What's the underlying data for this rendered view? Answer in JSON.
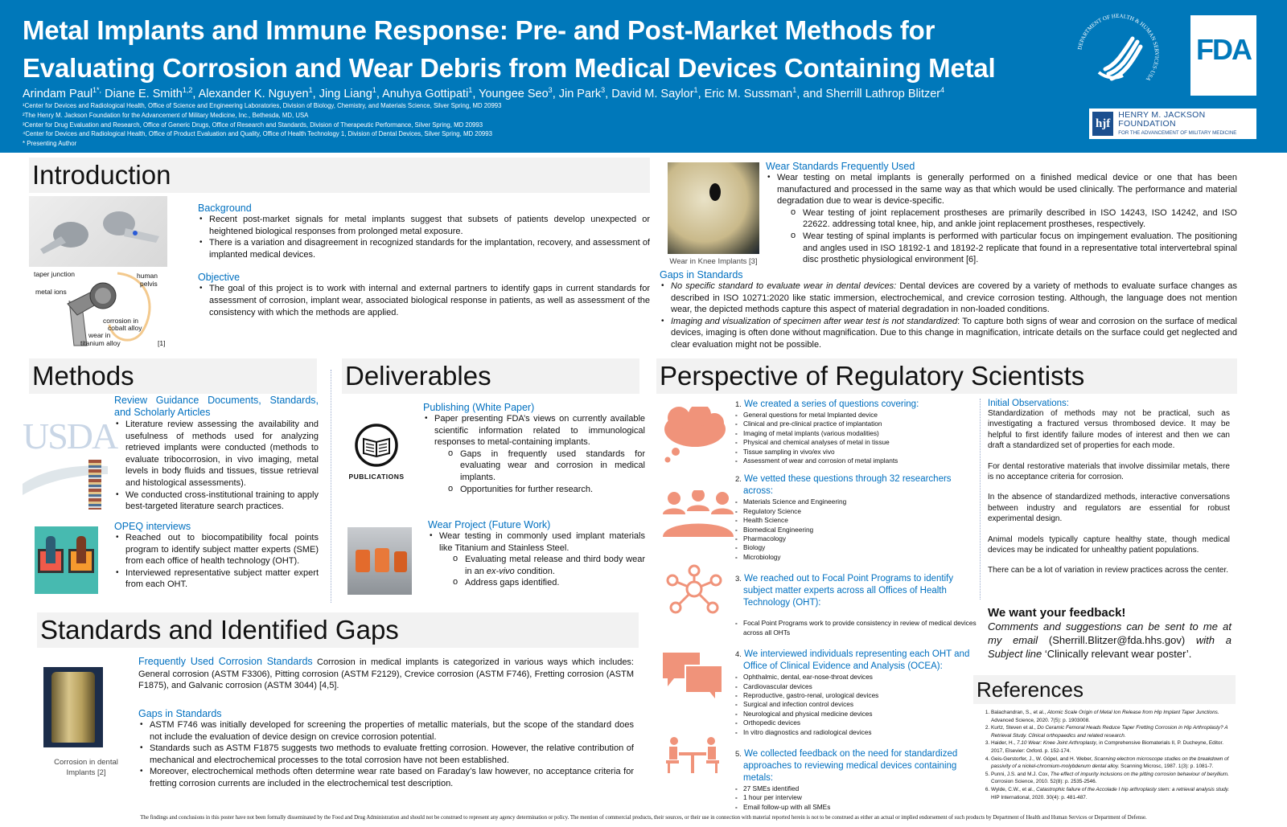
{
  "header": {
    "title_line1": "Metal Implants and Immune Response: Pre- and Post-Market Methods for",
    "title_line2": "Evaluating Corrosion and Wear Debris from Medical Devices Containing Metal",
    "authors": [
      {
        "name": "Arindam Paul",
        "sup": "1*,"
      },
      {
        "name": " Diane E. Smith",
        "sup": "1,2"
      },
      {
        "name": ", Alexander K. Nguyen",
        "sup": "1"
      },
      {
        "name": ", Jing Liang",
        "sup": "1"
      },
      {
        "name": ", Anuhya Gottipati",
        "sup": "1"
      },
      {
        "name": ", Youngee Seo",
        "sup": "3"
      },
      {
        "name": ", Jin Park",
        "sup": "3"
      },
      {
        "name": ", David M. Saylor",
        "sup": "1"
      },
      {
        "name": ", Eric M. Sussman",
        "sup": "1"
      },
      {
        "name": ", and Sherrill Lathrop Blitzer",
        "sup": "4"
      }
    ],
    "affiliations": [
      "¹Center for Devices and Radiological Health, Office of Science and Engineering Laboratories, Division of Biology, Chemistry, and Materials Science, Silver Spring, MD 20993",
      "²The Henry M. Jackson Foundation for the Advancement of Military Medicine, Inc., Bethesda, MD, USA",
      "³Center for Drug Evaluation and Research, Office of Generic Drugs, Office of Research and Standards, Division of Therapeutic Performance, Silver Spring, MD 20993",
      "⁴Center for Devices and Radiological Health, Office of Product Evaluation and Quality, Office of Health Technology 1, Division of Dental Devices, Silver Spring, MD 20993",
      "* Presenting Author"
    ],
    "logos": {
      "hhs_text": "DEPARTMENT OF HEALTH & HUMAN SERVICES·USA",
      "fda": "FDA",
      "hjf_badge": "hjf",
      "hjf_line1": "HENRY M. JACKSON FOUNDATION",
      "hjf_line2": "FOR THE ADVANCEMENT OF MILITARY MEDICINE"
    }
  },
  "colors": {
    "header_bg": "#0078ba",
    "subheading": "#0070c0",
    "section_bg": "#f2f2f2",
    "icon_salmon": "#f0937a"
  },
  "introduction": {
    "heading": "Introduction",
    "diagram_labels": {
      "taper": "taper junction",
      "pelvis1": "human",
      "pelvis2": "pelvis",
      "ions": "metal ions",
      "corr1": "corrosion in",
      "corr2": "cobalt alloy",
      "wear1": "wear in",
      "wear2": "titanium alloy",
      "ref": "[1]"
    },
    "background_title": "Background",
    "background": [
      "Recent post-market signals for metal implants suggest that subsets of patients develop unexpected or heightened biological responses from prolonged metal exposure.",
      "There is a variation and disagreement in recognized standards for the implantation, recovery, and assessment of implanted medical devices."
    ],
    "objective_title": "Objective",
    "objective": [
      "The goal of this project is to work with internal and external partners to identify gaps in current standards for assessment of corrosion, implant wear, associated biological response in patients, as well as assessment of the consistency with which the methods are applied."
    ]
  },
  "wear": {
    "image_caption": "Wear in Knee Implants [3]",
    "title": "Wear Standards Frequently Used",
    "bullet": "Wear testing on metal implants is generally performed on a finished medical device or one that has been manufactured and processed in the same way as that which would be used clinically. The performance and material degradation due to wear is device-specific.",
    "sub_bullets": [
      "Wear testing of joint replacement prostheses are primarily described in ISO 14243, ISO 14242, and ISO 22622. addressing  total knee, hip, and ankle joint replacement prostheses, respectively.",
      "Wear testing of spinal implants is performed with particular focus on impingement evaluation. The positioning and angles used in ISO 18192-1 and 18192-2 replicate that found in a representative total intervertebral spinal disc prosthetic physiological environment [6]."
    ],
    "gaps_title": "Gaps in Standards",
    "gaps": [
      {
        "lead": "No specific standard to evaluate wear in dental devices:",
        "text": " Dental devices are covered by a variety of methods to evaluate surface changes as described in ISO 10271:2020 like static immersion, electrochemical, and crevice corrosion testing. Although, the language does not mention wear, the depicted methods capture this aspect of material degradation in non-loaded conditions."
      },
      {
        "lead": "Imaging and visualization of specimen after wear test is not standardized",
        "text": ": To capture both signs of wear and corrosion on the surface of medical devices, imaging is often done without magnification. Due to this change in magnification, intricate details on the surface could get neglected and clear evaluation might not be possible."
      }
    ]
  },
  "methods": {
    "heading": "Methods",
    "usda_label": "USDA",
    "review_title": "Review Guidance Documents, Standards, and Scholarly Articles",
    "review": [
      "Literature review assessing the availability and usefulness of methods used for analyzing retrieved implants were conducted (methods to evaluate tribocorrosion, in vivo imaging, metal levels in body fluids and tissues, tissue retrieval and histological assessments).",
      "We conducted cross-institutional training to apply best-targeted literature search practices."
    ],
    "opeq_title": "OPEQ interviews",
    "opeq": [
      "Reached out to biocompatibility focal points program to identify subject matter experts (SME) from each office of health technology (OHT).",
      "Interviewed representative subject matter expert from each OHT."
    ]
  },
  "deliverables": {
    "heading": "Deliverables",
    "publications_label": "PUBLICATIONS",
    "publishing_title": "Publishing (White Paper)",
    "publishing": "Paper presenting FDA’s views on currently available scientific information related to immunological responses to metal-containing implants.",
    "publishing_sub": [
      "Gaps in frequently used standards for evaluating wear and corrosion in medical implants.",
      "Opportunities for further research."
    ],
    "wear_title": "Wear Project (Future Work)",
    "wear": "Wear testing in commonly used implant materials like Titanium and Stainless Steel.",
    "wear_sub_pre": "Evaluating metal release and third body wear in an ",
    "wear_sub_em": "ex-vivo",
    "wear_sub_post": " condition.",
    "wear_sub2": "Address gaps identified."
  },
  "standards": {
    "heading": "Standards and Identified Gaps",
    "image_caption": "Corrosion in dental Implants [2]",
    "corrosion_title": "Frequently Used Corrosion Standards",
    "corrosion_text": " Corrosion in medical implants is categorized in various ways which includes: General corrosion (ASTM F3306), Pitting corrosion (ASTM F2129), Crevice corrosion (ASTM F746), Fretting corrosion (ASTM F1875), and Galvanic corrosion (ASTM 3044) [4,5].",
    "gaps_title": "Gaps in Standards",
    "gaps": [
      "ASTM F746 was initially developed for screening the properties of metallic materials, but the scope of the standard does not include the evaluation of device design on crevice corrosion potential.",
      "Standards such as ASTM F1875 suggests two methods to evaluate fretting corrosion. However, the relative contribution of mechanical and electrochemical processes to the total corrosion have not been established.",
      "Moreover, electrochemical methods often determine wear rate based on Faraday’s law however, no acceptance criteria for fretting corrosion currents are included in the electrochemical test description."
    ]
  },
  "perspective": {
    "heading": "Perspective of Regulatory Scientists",
    "steps": [
      {
        "num": "1.",
        "title": "We created a series of questions covering:",
        "items": [
          "General questions for metal Implanted device",
          "Clinical and pre-clinical practice of implantation",
          "Imaging of metal implants (various modalities)",
          "Physical and chemical analyses of metal in tissue",
          "Tissue sampling in vivo/ex vivo",
          "Assessment of wear and corrosion of metal implants"
        ]
      },
      {
        "num": "2.",
        "title": "We vetted these questions through 32 researchers across:",
        "items": [
          "Materials Science and Engineering",
          "Regulatory Science",
          "Health Science",
          "Biomedical Engineering",
          "Pharmacology",
          "Biology",
          "Microbiology"
        ]
      },
      {
        "num": "3.",
        "title": "We reached out to Focal Point Programs to identify subject matter experts across all Offices of Health Technology (OHT):",
        "items": [
          "Focal Point Programs work to provide consistency in review of medical devices across all OHTs"
        ]
      },
      {
        "num": "4.",
        "title": "We interviewed individuals representing each OHT and Office of Clinical Evidence and Analysis (OCEA):",
        "items": [
          "Ophthalmic, dental, ear-nose-throat devices",
          "Cardiovascular devices",
          "Reproductive, gastro-renal, urological devices",
          "Surgical and infection control devices",
          "Neurological and physical medicine devices",
          "Orthopedic devices",
          "In vitro diagnostics and radiological devices"
        ]
      },
      {
        "num": "5.",
        "title": "We collected feedback on the need for standardized approaches to reviewing medical devices containing metals:",
        "items": [
          "27 SMEs identified",
          "1 hour per interview",
          "Email follow-up with all SMEs"
        ]
      }
    ],
    "observations_title": "Initial Observations:",
    "observations": [
      "Standardization of methods may not be practical, such as investigating a fractured versus thrombosed device. It may be helpful to first identify failure modes of interest and then we can draft a standardized set of properties for each mode.",
      "For dental restorative materials that involve dissimilar metals, there is no acceptance criteria for corrosion.",
      "In the absence of standardized methods, interactive conversations between industry and regulators are essential for robust experimental design.",
      "Animal models typically capture healthy state, though medical devices may be indicated for unhealthy patient populations.",
      "There can be a lot of variation in review practices across the center."
    ],
    "feedback_title": "We want your feedback!",
    "feedback_pre": "Comments and suggestions can be sent to me at my email ",
    "feedback_email": "(Sherrill.Blitzer@fda.hhs.gov)",
    "feedback_mid": " with a Subject line ",
    "feedback_subject": "‘Clinically relevant wear poster’."
  },
  "references": {
    "heading": "References",
    "items": [
      {
        "a": "Balachandran, S., et al., ",
        "t": "Atomic Scale Origin of Metal Ion Release from Hip Implant Taper Junctions.",
        "r": " Advanced Science, 2020. 7(5): p. 1903008."
      },
      {
        "a": "Kurtz, Steven et al., ",
        "t": "Do Ceramic Femoral Heads Reduce Taper Fretting Corrosion in Hip Arthroplasty? A Retrieval Study. Clinical orthopaedics and related research.",
        "r": ""
      },
      {
        "a": "Haider, H., ",
        "t": "7.10 Wear: Knee Joint Arthroplasty",
        "r": ", in Comprehensive Biomaterials II, P. Ducheyne, Editor. 2017, Elsevier: Oxford. p. 152-174."
      },
      {
        "a": "Geis-Gerstorfer, J., W. Göpel, and H. Weber, ",
        "t": "Scanning electron microscope studies on the breakdown of passivity of a nickel-chromium-molybdenum dental alloy.",
        "r": " Scanning Microsc, 1987. 1(3): p. 1081-7."
      },
      {
        "a": "Punni, J.S. and M.J. Cox, ",
        "t": "The effect of impurity inclusions on the pitting corrosion behaviour of beryllium.",
        "r": " Corrosion Science, 2010. 52(8): p. 2535-2546."
      },
      {
        "a": "Wylde, C.W., et al., ",
        "t": "Catastrophic failure of the Accolade I hip arthroplasty stem: a retrieval analysis study.",
        "r": " HIP International, 2020. 30(4): p. 481-487."
      }
    ]
  },
  "disclaimer": "The findings and conclusions in this poster have not been formally disseminated by the Food and Drug Administration and should not be construed to represent any agency determination or policy.  The mention of commercial products, their sources, or their use in connection with material reported herein is not to be construed as either an actual or implied endorsement of such products by Department of Health and Human Services or Department of Defense."
}
